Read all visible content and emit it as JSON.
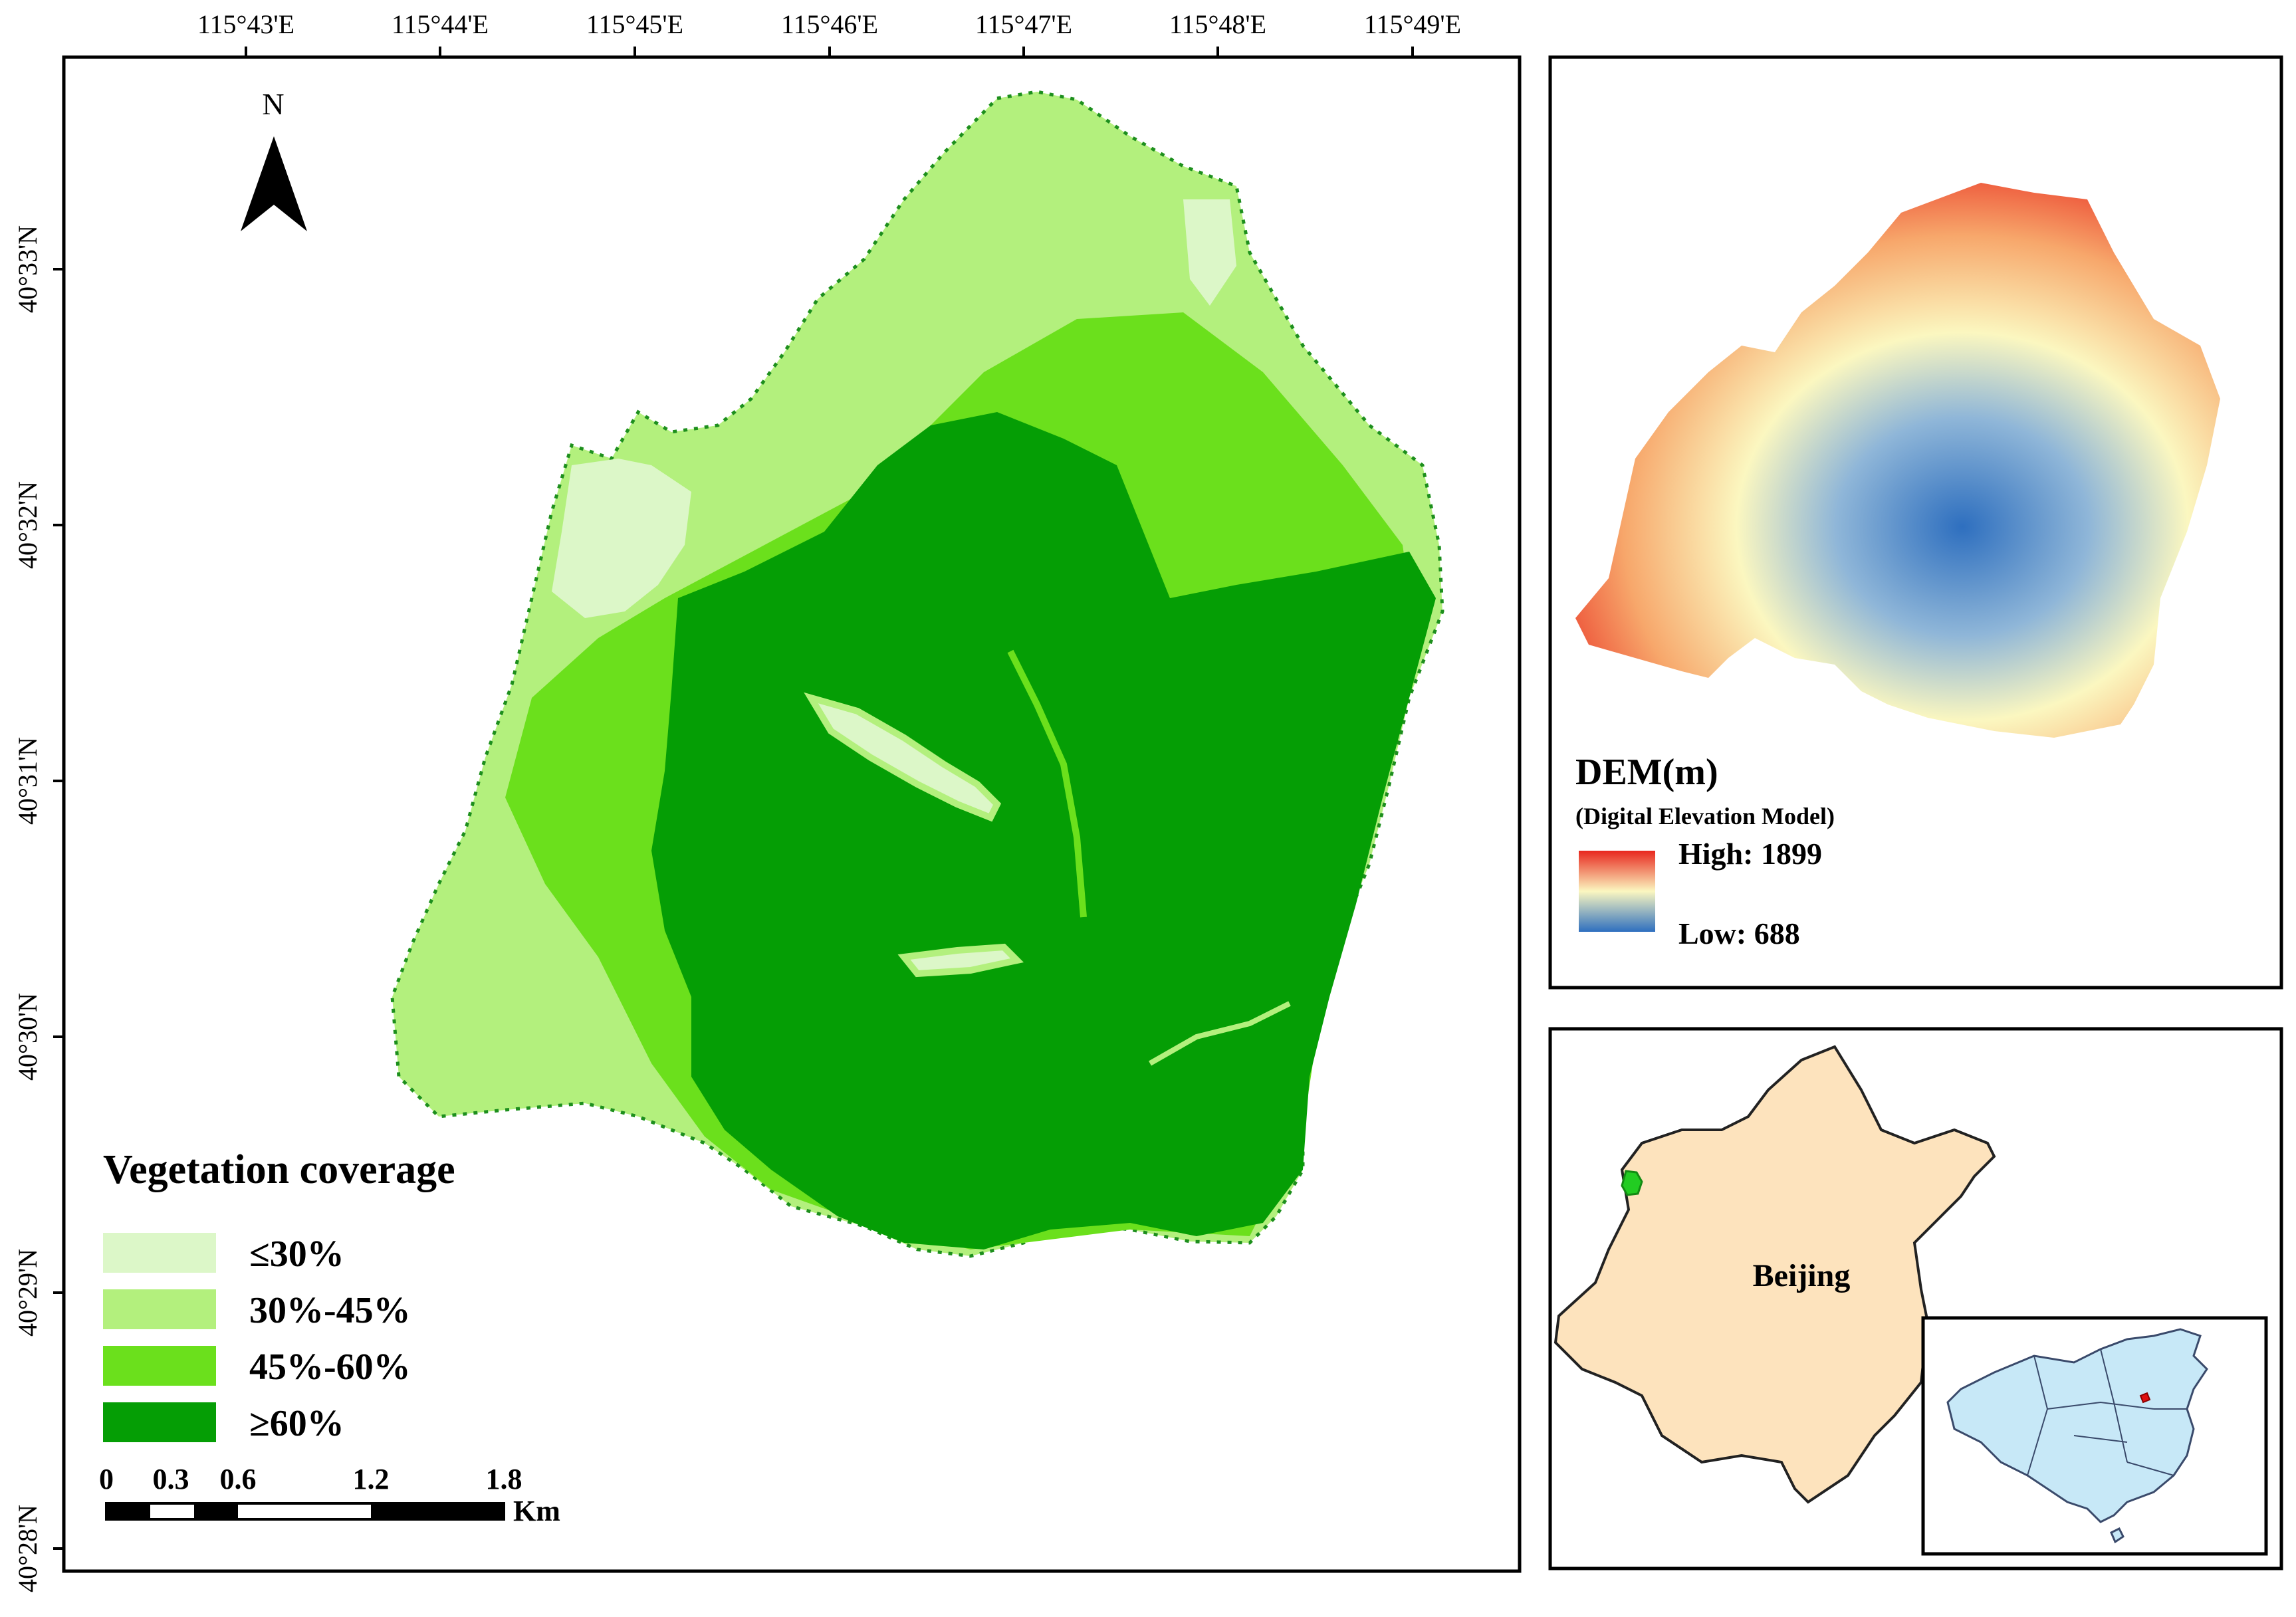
{
  "main_map": {
    "lon_labels": [
      "115°43'E",
      "115°44'E",
      "115°45'E",
      "115°46'E",
      "115°47'E",
      "115°48'E",
      "115°49'E"
    ],
    "lat_labels": [
      "40°33'N",
      "40°32'N",
      "40°31'N",
      "40°30'N",
      "40°29'N",
      "40°28'N"
    ],
    "north_label": "N",
    "legend": {
      "title": "Vegetation coverage",
      "classes": [
        {
          "label": "≤30%",
          "color": "#dcf7c8"
        },
        {
          "label": "30%-45%",
          "color": "#b3f07d"
        },
        {
          "label": "45%-60%",
          "color": "#6be01c"
        },
        {
          "label": "≥60%",
          "color": "#059e05"
        }
      ]
    },
    "scale_bar": {
      "ticks": [
        "0",
        "0.3",
        "0.6",
        "1.2",
        "1.8"
      ],
      "unit": "Km"
    }
  },
  "dem_inset": {
    "title": "DEM(m)",
    "subtitle": "(Digital Elevation Model)",
    "high_label": "High: 1899",
    "low_label": "Low: 688",
    "colors": {
      "high": "#e8271e",
      "mid": "#fbf7c0",
      "low": "#2e6fbf"
    }
  },
  "location_inset": {
    "region_label": "Beijing",
    "colors": {
      "beijing": "#fde3bd",
      "study_area": "#22cc22",
      "china": "#c7e8f7",
      "marker": "#e01010"
    }
  }
}
